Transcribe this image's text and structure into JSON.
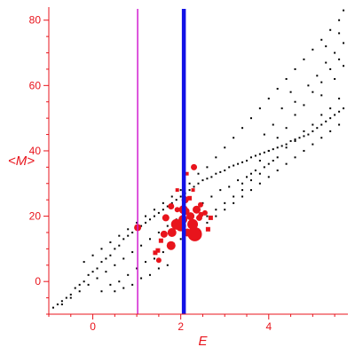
{
  "chart_data": {
    "type": "scatter",
    "title": "",
    "xlabel": "E",
    "ylabel": "<M>",
    "xlim": [
      -1.0,
      5.8
    ],
    "ylim": [
      -10,
      84
    ],
    "xticks": [
      0,
      2,
      4
    ],
    "yticks": [
      0,
      20,
      40,
      60,
      80
    ],
    "grid": false,
    "colors": {
      "axis": "#e8141c",
      "points": "#000000",
      "highlight": "#e8141c",
      "line_magenta": "#d21fd2",
      "line_blue": "#1212e6"
    },
    "vertical_lines": [
      {
        "x": 1.02,
        "color": "#d21fd2",
        "style": "thin"
      },
      {
        "x": 2.07,
        "color": "#1212e6",
        "style": "thick"
      }
    ],
    "series": [
      {
        "points": [
          [
            -0.9,
            -8
          ],
          [
            -0.8,
            -7
          ],
          [
            -0.7,
            -6
          ],
          [
            -0.6,
            -5
          ],
          [
            -0.5,
            -4
          ],
          [
            -0.4,
            -2
          ],
          [
            -0.3,
            -1
          ],
          [
            -0.2,
            0
          ],
          [
            -0.1,
            2
          ],
          [
            0.0,
            3
          ],
          [
            0.1,
            4
          ],
          [
            0.2,
            6
          ],
          [
            0.3,
            7
          ],
          [
            0.4,
            8
          ],
          [
            0.5,
            10
          ],
          [
            0.6,
            11
          ],
          [
            0.7,
            13
          ],
          [
            0.8,
            14
          ],
          [
            0.9,
            15
          ],
          [
            1.0,
            16
          ],
          [
            1.1,
            17
          ],
          [
            1.2,
            18
          ],
          [
            1.3,
            19
          ],
          [
            1.4,
            20
          ],
          [
            1.5,
            21
          ],
          [
            1.6,
            22
          ],
          [
            1.7,
            23
          ],
          [
            1.8,
            24
          ],
          [
            1.9,
            25
          ],
          [
            2.0,
            26
          ],
          [
            2.1,
            27
          ],
          [
            2.2,
            28
          ],
          [
            2.3,
            29
          ],
          [
            2.4,
            30
          ],
          [
            2.5,
            31
          ],
          [
            2.6,
            31.5
          ],
          [
            2.7,
            32
          ],
          [
            2.8,
            33
          ],
          [
            2.9,
            33.5
          ],
          [
            3.0,
            34
          ],
          [
            3.1,
            35
          ],
          [
            3.2,
            35.5
          ],
          [
            3.3,
            36
          ],
          [
            3.4,
            36.5
          ],
          [
            3.5,
            37
          ],
          [
            3.6,
            38
          ],
          [
            3.7,
            38.5
          ],
          [
            3.8,
            39
          ],
          [
            3.9,
            39.5
          ],
          [
            4.0,
            40
          ],
          [
            4.1,
            40.5
          ],
          [
            4.2,
            41
          ],
          [
            4.3,
            41.5
          ],
          [
            4.4,
            42
          ],
          [
            4.5,
            43
          ],
          [
            4.6,
            43.5
          ],
          [
            4.7,
            44
          ],
          [
            4.8,
            44.5
          ],
          [
            4.9,
            45
          ],
          [
            5.0,
            46
          ],
          [
            5.1,
            47
          ],
          [
            5.2,
            48
          ],
          [
            5.3,
            49
          ],
          [
            5.4,
            50
          ],
          [
            5.5,
            51
          ],
          [
            5.6,
            52
          ],
          [
            5.7,
            53
          ],
          [
            -0.7,
            -7
          ],
          [
            -0.5,
            -5
          ],
          [
            -0.3,
            -3
          ],
          [
            -0.1,
            -1
          ],
          [
            0.1,
            1
          ],
          [
            0.3,
            3
          ],
          [
            0.5,
            5
          ],
          [
            0.7,
            7
          ],
          [
            0.9,
            9
          ],
          [
            1.1,
            11
          ],
          [
            1.3,
            13
          ],
          [
            1.5,
            15
          ],
          [
            1.7,
            17
          ],
          [
            1.9,
            19
          ],
          [
            2.1,
            21
          ],
          [
            2.3,
            22
          ],
          [
            2.5,
            24
          ],
          [
            2.7,
            26
          ],
          [
            2.9,
            28
          ],
          [
            3.1,
            29
          ],
          [
            3.3,
            31
          ],
          [
            3.5,
            32
          ],
          [
            3.7,
            34
          ],
          [
            3.9,
            35
          ],
          [
            4.1,
            37
          ],
          [
            0.2,
            -3
          ],
          [
            0.4,
            -1
          ],
          [
            0.6,
            0
          ],
          [
            0.8,
            2
          ],
          [
            1.0,
            4
          ],
          [
            1.2,
            6
          ],
          [
            1.4,
            7
          ],
          [
            1.6,
            9
          ],
          [
            1.8,
            11
          ],
          [
            2.0,
            13
          ],
          [
            2.2,
            14
          ],
          [
            2.4,
            16
          ],
          [
            2.6,
            18
          ],
          [
            2.8,
            20
          ],
          [
            3.0,
            22
          ],
          [
            3.2,
            24
          ],
          [
            3.4,
            26
          ],
          [
            3.6,
            28
          ],
          [
            3.8,
            30
          ],
          [
            4.0,
            32
          ],
          [
            4.2,
            34
          ],
          [
            4.4,
            36
          ],
          [
            4.6,
            38
          ],
          [
            4.8,
            40
          ],
          [
            5.0,
            42
          ],
          [
            5.2,
            44
          ],
          [
            5.4,
            46
          ],
          [
            5.6,
            48
          ],
          [
            0.5,
            -3
          ],
          [
            0.7,
            -2
          ],
          [
            0.9,
            -1
          ],
          [
            1.1,
            1
          ],
          [
            1.3,
            2
          ],
          [
            1.5,
            4
          ],
          [
            1.7,
            5
          ],
          [
            -0.2,
            6
          ],
          [
            0.0,
            8
          ],
          [
            0.2,
            10
          ],
          [
            0.4,
            12
          ],
          [
            0.6,
            14
          ],
          [
            0.8,
            16
          ],
          [
            1.0,
            18
          ],
          [
            1.2,
            20
          ],
          [
            1.4,
            22
          ],
          [
            1.6,
            24
          ],
          [
            1.8,
            26
          ],
          [
            2.0,
            28
          ],
          [
            2.2,
            30
          ],
          [
            2.4,
            33
          ],
          [
            2.6,
            35
          ],
          [
            2.8,
            38
          ],
          [
            3.0,
            41
          ],
          [
            3.2,
            44
          ],
          [
            3.4,
            47
          ],
          [
            3.6,
            50
          ],
          [
            3.8,
            53
          ],
          [
            4.0,
            56
          ],
          [
            4.2,
            59
          ],
          [
            4.4,
            62
          ],
          [
            4.6,
            65
          ],
          [
            4.8,
            68
          ],
          [
            5.0,
            71
          ],
          [
            5.2,
            74
          ],
          [
            5.4,
            77
          ],
          [
            5.6,
            80
          ],
          [
            5.7,
            83
          ],
          [
            2.6,
            20
          ],
          [
            2.8,
            22
          ],
          [
            3.0,
            24
          ],
          [
            3.2,
            26
          ],
          [
            3.4,
            28
          ],
          [
            3.6,
            31
          ],
          [
            3.8,
            33
          ],
          [
            4.0,
            36
          ],
          [
            4.2,
            38
          ],
          [
            4.4,
            41
          ],
          [
            4.6,
            43
          ],
          [
            4.8,
            46
          ],
          [
            5.0,
            48
          ],
          [
            5.2,
            51
          ],
          [
            5.4,
            53
          ],
          [
            5.6,
            56
          ],
          [
            3.4,
            30
          ],
          [
            3.6,
            33
          ],
          [
            3.8,
            37
          ],
          [
            4.0,
            40
          ],
          [
            4.2,
            44
          ],
          [
            4.4,
            47
          ],
          [
            4.6,
            51
          ],
          [
            4.8,
            54
          ],
          [
            5.0,
            58
          ],
          [
            5.2,
            61
          ],
          [
            5.4,
            65
          ],
          [
            5.6,
            68
          ],
          [
            4.9,
            60
          ],
          [
            5.1,
            63
          ],
          [
            5.3,
            67
          ],
          [
            5.5,
            70
          ],
          [
            5.7,
            73
          ],
          [
            4.6,
            55
          ],
          [
            4.3,
            53
          ],
          [
            5.2,
            57
          ],
          [
            5.5,
            62
          ],
          [
            5.7,
            66
          ],
          [
            4.1,
            48
          ],
          [
            3.9,
            45
          ],
          [
            4.5,
            58
          ],
          [
            5.3,
            72
          ],
          [
            5.6,
            76
          ]
        ]
      }
    ],
    "highlighted_points": [
      [
        1.02,
        16.5,
        8
      ],
      [
        1.42,
        8.8,
        5
      ],
      [
        1.5,
        6.5,
        6
      ],
      [
        1.62,
        14.5,
        8
      ],
      [
        1.66,
        19.5,
        8
      ],
      [
        1.78,
        23,
        7
      ],
      [
        1.78,
        11,
        10
      ],
      [
        1.8,
        15,
        10
      ],
      [
        1.9,
        17.5,
        12
      ],
      [
        1.92,
        22,
        6
      ],
      [
        2.0,
        17,
        12
      ],
      [
        2.05,
        19,
        10
      ],
      [
        2.06,
        22,
        10
      ],
      [
        2.1,
        25,
        8
      ],
      [
        2.12,
        21.5,
        8
      ],
      [
        2.15,
        15,
        9
      ],
      [
        2.22,
        20,
        9
      ],
      [
        2.27,
        17.5,
        12
      ],
      [
        2.32,
        14.5,
        16
      ],
      [
        2.36,
        22,
        9
      ],
      [
        2.42,
        19.5,
        7
      ],
      [
        2.45,
        23.5,
        6
      ],
      [
        2.55,
        21,
        6
      ],
      [
        2.62,
        16,
        5
      ],
      [
        2.68,
        19.5,
        5
      ],
      [
        2.3,
        35,
        7
      ],
      [
        2.28,
        28,
        4
      ],
      [
        2.14,
        33,
        4
      ],
      [
        1.92,
        28,
        4
      ],
      [
        2.2,
        25.5,
        5
      ],
      [
        2.46,
        20.5,
        6
      ],
      [
        1.48,
        9.5,
        5
      ],
      [
        1.55,
        12.5,
        5
      ]
    ]
  }
}
